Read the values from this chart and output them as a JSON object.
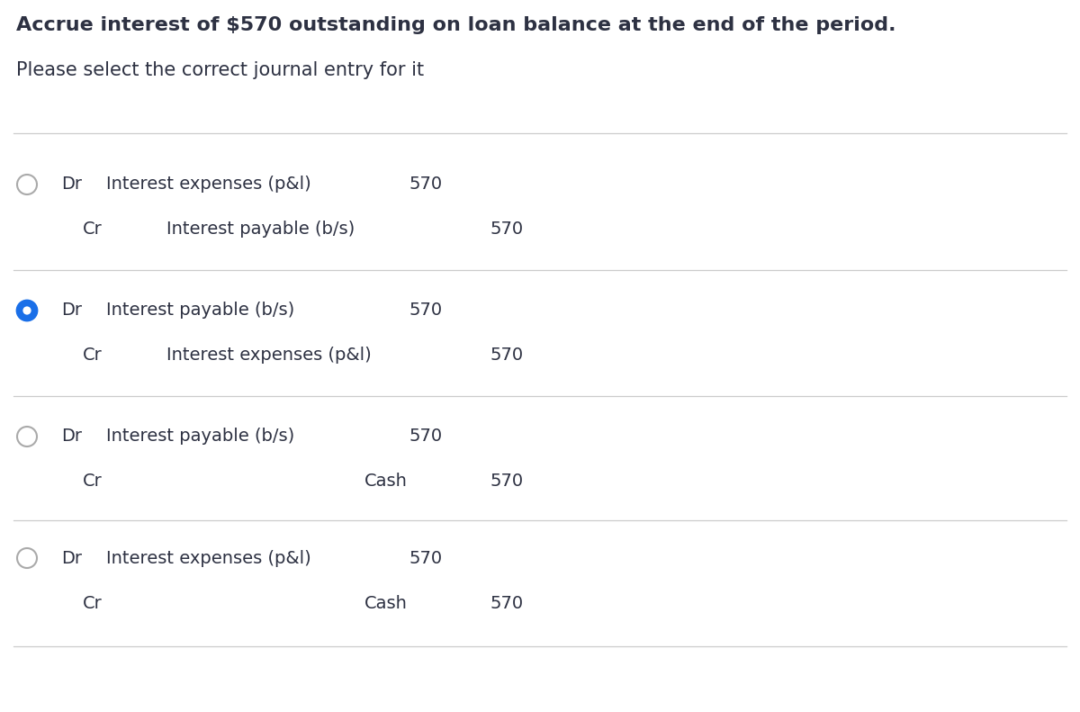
{
  "title": "Accrue interest of $570 outstanding on loan balance at the end of the period.",
  "subtitle": "Please select the correct journal entry for it",
  "title_fontsize": 16,
  "subtitle_fontsize": 15,
  "background_color": "#ffffff",
  "text_color": "#2d3142",
  "options": [
    {
      "selected": false,
      "dr_label": "Dr",
      "dr_account": "Interest expenses (p&l)",
      "dr_amount": "570",
      "cr_label": "Cr",
      "cr_account": "Interest payable (b/s)",
      "cr_amount": "570",
      "cr_is_cash": false
    },
    {
      "selected": true,
      "dr_label": "Dr",
      "dr_account": "Interest payable (b/s)",
      "dr_amount": "570",
      "cr_label": "Cr",
      "cr_account": "Interest expenses (p&l)",
      "cr_amount": "570",
      "cr_is_cash": false
    },
    {
      "selected": false,
      "dr_label": "Dr",
      "dr_account": "Interest payable (b/s)",
      "dr_amount": "570",
      "cr_label": "Cr",
      "cr_account": "Cash",
      "cr_amount": "570",
      "cr_is_cash": true
    },
    {
      "selected": false,
      "dr_label": "Dr",
      "dr_account": "Interest expenses (p&l)",
      "dr_amount": "570",
      "cr_label": "Cr",
      "cr_account": "Cash",
      "cr_amount": "570",
      "cr_is_cash": true
    }
  ],
  "circle_fill_unselected": "#ffffff",
  "circle_edge_unselected": "#aaaaaa",
  "circle_fill_selected": "#1a6fe8",
  "circle_edge_selected": "#1a6fe8",
  "divider_color": "#cccccc",
  "text_dark": "#2d3142",
  "text_medium": "#444455"
}
